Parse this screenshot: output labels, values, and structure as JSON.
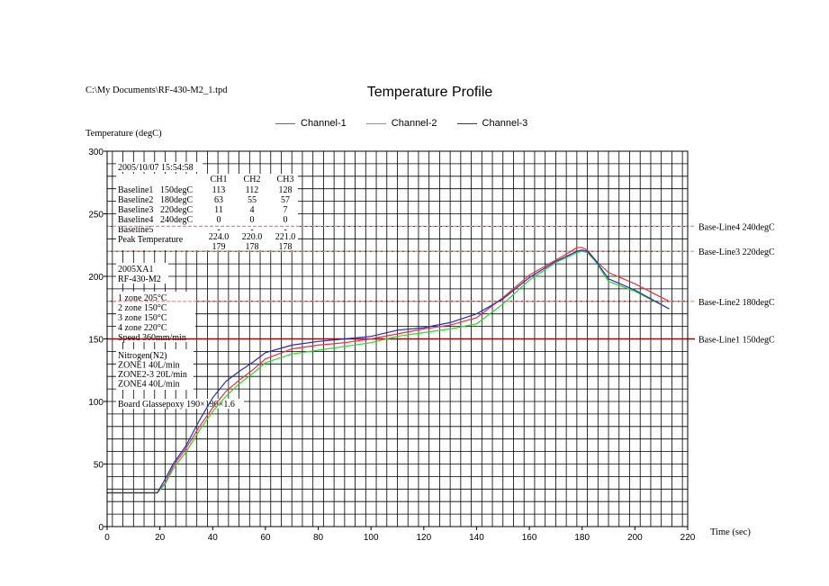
{
  "file_path": "C:\\My Documents\\RF-430-M2_1.tpd",
  "chart_data": {
    "type": "line",
    "title": "Temperature Profile",
    "xlabel": "Time (sec)",
    "ylabel": "Temperature (degC)",
    "xlim": [
      0,
      220
    ],
    "ylim": [
      0,
      300
    ],
    "xticks": [
      0,
      20,
      40,
      60,
      80,
      100,
      120,
      140,
      160,
      180,
      200,
      220
    ],
    "yticks": [
      0,
      50,
      100,
      150,
      200,
      250,
      300
    ],
    "grid": true,
    "legend_position": "top",
    "series": [
      {
        "name": "Channel-1",
        "color": "#e8323c",
        "x": [
          0,
          19,
          22,
          25,
          30,
          35,
          40,
          45,
          50,
          55,
          60,
          70,
          80,
          90,
          100,
          110,
          120,
          130,
          140,
          150,
          160,
          170,
          175,
          178,
          180,
          182,
          185,
          190,
          200,
          213
        ],
        "y": [
          27,
          27,
          35,
          48,
          63,
          80,
          95,
          108,
          117,
          125,
          134,
          142,
          145,
          147,
          150,
          154,
          158,
          161,
          167,
          183,
          201,
          213,
          219,
          223,
          223,
          221,
          213,
          203,
          194,
          180
        ]
      },
      {
        "name": "Channel-2",
        "color": "#2bd82b",
        "x": [
          0,
          19,
          22,
          25,
          30,
          35,
          40,
          45,
          50,
          55,
          60,
          70,
          80,
          90,
          100,
          110,
          120,
          130,
          140,
          150,
          160,
          170,
          175,
          178,
          180,
          182,
          185,
          190,
          200,
          213
        ],
        "y": [
          27,
          27,
          34,
          46,
          60,
          77,
          92,
          104,
          114,
          122,
          131,
          138,
          141,
          144,
          147,
          152,
          155,
          158,
          162,
          178,
          197,
          211,
          216,
          219,
          220,
          219,
          212,
          196,
          188,
          174
        ]
      },
      {
        "name": "Channel-3",
        "color": "#2a2ab8",
        "x": [
          0,
          19,
          22,
          25,
          30,
          35,
          40,
          45,
          50,
          55,
          60,
          70,
          80,
          90,
          100,
          110,
          120,
          130,
          140,
          150,
          160,
          170,
          175,
          178,
          180,
          182,
          185,
          190,
          200,
          213
        ],
        "y": [
          27,
          27,
          38,
          50,
          65,
          85,
          103,
          116,
          124,
          131,
          139,
          145,
          148,
          150,
          152,
          157,
          159,
          163,
          170,
          182,
          199,
          212,
          217,
          220,
          221,
          220,
          213,
          198,
          189,
          174
        ]
      }
    ],
    "baselines": [
      {
        "label": "Base-Line1 150degC",
        "value": 150,
        "color": "#8a1010",
        "style": "solid"
      },
      {
        "label": "Base-Line2 180degC",
        "value": 180,
        "color": "#e58a8a",
        "style": "dashed"
      },
      {
        "label": "Base-Line3 220degC",
        "value": 220,
        "color": "#e58a8a",
        "style": "dashed"
      },
      {
        "label": "Base-Line4 240degC",
        "value": 240,
        "color": "#e58a8a",
        "style": "dashed"
      }
    ],
    "info_panel": {
      "timestamp": "2005/10/07 15:54:58",
      "columns": [
        "CH1",
        "CH2",
        "CH3"
      ],
      "rows": [
        {
          "label": "Baseline1",
          "setting": "150degC",
          "values": [
            "113",
            "112",
            "128"
          ]
        },
        {
          "label": "Baseline2",
          "setting": "180degC",
          "values": [
            "63",
            "55",
            "57"
          ]
        },
        {
          "label": "Baseline3",
          "setting": "220degC",
          "values": [
            "11",
            "4",
            "7"
          ]
        },
        {
          "label": "Baseline4",
          "setting": "240degC",
          "values": [
            "0",
            "0",
            "0"
          ]
        },
        {
          "label": "Baseline5",
          "setting": "",
          "values": [
            "-",
            "-",
            "-"
          ]
        }
      ],
      "peak_label": "Peak Temperature",
      "peak_values": [
        "224.0",
        "220.0",
        "221.0"
      ],
      "peak_times": [
        "179",
        "178",
        "178"
      ],
      "machine_lines": [
        "2005XA1",
        "RF-430-M2"
      ],
      "zone_lines": [
        "1 zone 205°C",
        "2 zone 150°C",
        "3 zone 150°C",
        "4 zone 220°C",
        "Speed 360mm/min"
      ],
      "nitrogen_lines": [
        "Nitrogen(N2)",
        "ZONE1    40L/min",
        "ZONE2-3  20L/min",
        "ZONE4    40L/min"
      ],
      "board_line": "Board Glassepoxy 190×190×1.6"
    }
  }
}
